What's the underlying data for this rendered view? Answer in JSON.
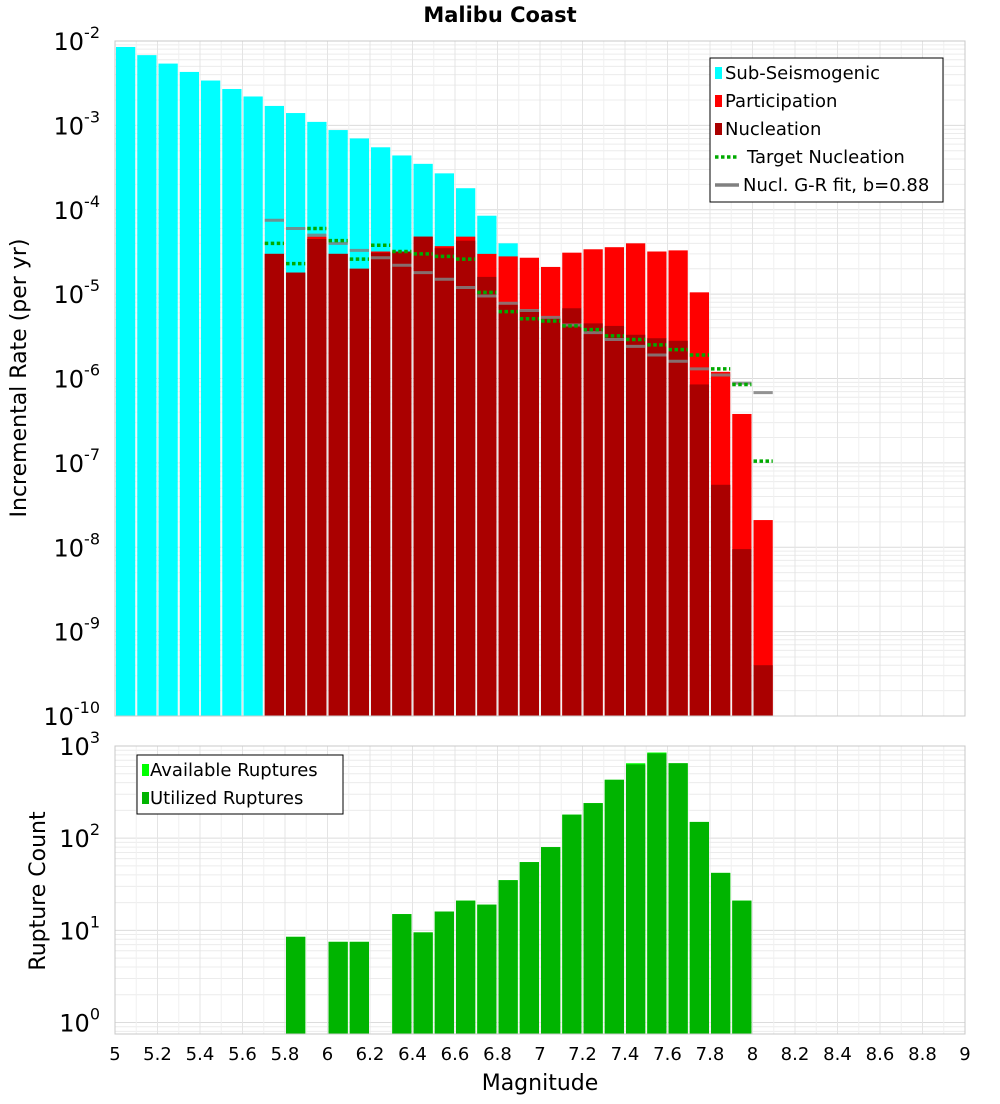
{
  "chart_data": [
    {
      "type": "bar",
      "title": "Malibu Coast",
      "ylabel": "Incremental Rate (per yr)",
      "xlabel": "",
      "yscale": "log",
      "ylim": [
        1e-10,
        0.01
      ],
      "xlim": [
        5,
        9
      ],
      "grid": true,
      "legend_placement": "top-right",
      "y_tick_labels": [
        {
          "base": "10",
          "exp": "-2"
        },
        {
          "base": "10",
          "exp": "-3"
        },
        {
          "base": "10",
          "exp": "-4"
        },
        {
          "base": "10",
          "exp": "-5"
        },
        {
          "base": "10",
          "exp": "-6"
        },
        {
          "base": "10",
          "exp": "-7"
        },
        {
          "base": "10",
          "exp": "-8"
        },
        {
          "base": "10",
          "exp": "-9"
        },
        {
          "base": "10",
          "exp": "-10"
        }
      ],
      "legend": [
        {
          "label": "Sub-Seismogenic",
          "color": "#00ffff",
          "kind": "box"
        },
        {
          "label": "Participation",
          "color": "#ff0000",
          "kind": "box"
        },
        {
          "label": "Nucleation",
          "color": "#aa0000",
          "kind": "box"
        },
        {
          "label": "Target Nucleation",
          "color": "#00aa00",
          "kind": "dotted"
        },
        {
          "label": "Nucl. G-R fit, b=0.88",
          "color": "#808080",
          "kind": "line"
        }
      ],
      "bar_width": 0.1,
      "series": [
        {
          "name": "Sub-Seismogenic",
          "color": "#00ffff",
          "x": [
            5.05,
            5.15,
            5.25,
            5.35,
            5.45,
            5.55,
            5.65,
            5.75,
            5.85,
            5.95,
            6.05,
            6.15,
            6.25,
            6.35,
            6.45,
            6.55,
            6.65,
            6.75,
            6.85
          ],
          "values": [
            0.0085,
            0.0068,
            0.0054,
            0.0043,
            0.0034,
            0.0027,
            0.0022,
            0.0017,
            0.0014,
            0.0011,
            0.00088,
            0.0007,
            0.00055,
            0.00044,
            0.00035,
            0.00027,
            0.00018,
            8.5e-05,
            4e-05
          ]
        },
        {
          "name": "Participation",
          "color": "#ff0000",
          "x": [
            5.75,
            5.85,
            5.95,
            6.05,
            6.15,
            6.25,
            6.35,
            6.45,
            6.55,
            6.65,
            6.75,
            6.85,
            6.95,
            7.05,
            7.15,
            7.25,
            7.35,
            7.45,
            7.55,
            7.65,
            7.75,
            7.85,
            7.95,
            8.05
          ],
          "values": [
            3e-05,
            1.8e-05,
            4.8e-05,
            3e-05,
            2e-05,
            3.2e-05,
            3.2e-05,
            4.8e-05,
            3.7e-05,
            4.8e-05,
            3e-05,
            2.8e-05,
            2.7e-05,
            2.1e-05,
            3.1e-05,
            3.4e-05,
            3.6e-05,
            4e-05,
            3.2e-05,
            3.3e-05,
            1.05e-05,
            1.2e-06,
            3.8e-07,
            2.1e-08
          ]
        },
        {
          "name": "Nucleation",
          "color": "#aa0000",
          "x": [
            5.75,
            5.85,
            5.95,
            6.05,
            6.15,
            6.25,
            6.35,
            6.45,
            6.55,
            6.65,
            6.75,
            6.85,
            6.95,
            7.05,
            7.15,
            7.25,
            7.35,
            7.45,
            7.55,
            7.65,
            7.75,
            7.85,
            7.95,
            8.05
          ],
          "values": [
            3e-05,
            1.8e-05,
            4.5e-05,
            3e-05,
            2e-05,
            3.1e-05,
            3.2e-05,
            4.8e-05,
            3.5e-05,
            4.3e-05,
            1.6e-05,
            7.5e-06,
            6.5e-06,
            5.2e-06,
            6.8e-06,
            4.5e-06,
            4.2e-06,
            3.3e-06,
            3e-06,
            2.8e-06,
            8.5e-07,
            5.5e-08,
            9.5e-09,
            4e-10
          ]
        },
        {
          "name": "Target Nucleation",
          "color": "#00aa00",
          "x": [
            5.75,
            5.85,
            5.95,
            6.05,
            6.15,
            6.25,
            6.35,
            6.45,
            6.55,
            6.65,
            6.75,
            6.85,
            6.95,
            7.05,
            7.15,
            7.25,
            7.35,
            7.45,
            7.55,
            7.65,
            7.75,
            7.85,
            7.95,
            8.05
          ],
          "values": [
            4e-05,
            2.3e-05,
            6e-05,
            4.3e-05,
            2.6e-05,
            3.8e-05,
            3.2e-05,
            3e-05,
            2.8e-05,
            2.6e-05,
            1.05e-05,
            6.2e-06,
            5.1e-06,
            4.8e-06,
            4.2e-06,
            3.8e-06,
            3.2e-06,
            2.9e-06,
            2.5e-06,
            2.2e-06,
            1.9e-06,
            1.3e-06,
            8.5e-07,
            1.05e-07
          ]
        },
        {
          "name": "Nucl. G-R fit, b=0.88",
          "color": "#808080",
          "x": [
            5.75,
            5.85,
            5.95,
            6.05,
            6.15,
            6.25,
            6.35,
            6.45,
            6.55,
            6.65,
            6.75,
            6.85,
            6.95,
            7.05,
            7.15,
            7.25,
            7.35,
            7.45,
            7.55,
            7.65,
            7.75,
            7.85,
            7.95,
            8.05
          ],
          "values": [
            7.5e-05,
            6e-05,
            5e-05,
            4e-05,
            3.3e-05,
            2.7e-05,
            2.2e-05,
            1.8e-05,
            1.5e-05,
            1.2e-05,
            9.5e-06,
            7.8e-06,
            6.4e-06,
            5.3e-06,
            4.3e-06,
            3.5e-06,
            2.9e-06,
            2.4e-06,
            1.9e-06,
            1.6e-06,
            1.3e-06,
            1.1e-06,
            8.8e-07,
            6.8e-07
          ]
        }
      ]
    },
    {
      "type": "bar",
      "title": "",
      "ylabel": "Rupture Count",
      "xlabel": "Magnitude",
      "yscale": "log",
      "ylim": [
        0.75,
        1000
      ],
      "xlim": [
        5,
        9
      ],
      "grid": true,
      "legend_placement": "top-left",
      "x_ticks": [
        "5",
        "5.2",
        "5.4",
        "5.6",
        "5.8",
        "6",
        "6.2",
        "6.4",
        "6.6",
        "6.8",
        "7",
        "7.2",
        "7.4",
        "7.6",
        "7.8",
        "8",
        "8.2",
        "8.4",
        "8.6",
        "8.8",
        "9"
      ],
      "y_tick_labels": [
        {
          "base": "10",
          "exp": "3",
          "value": 1000
        },
        {
          "base": "10",
          "exp": "2",
          "value": 100
        },
        {
          "base": "10",
          "exp": "1",
          "value": 10
        },
        {
          "base": "10",
          "exp": "0",
          "value": 1
        }
      ],
      "legend": [
        {
          "label": "Available Ruptures",
          "color": "#00ff00",
          "kind": "box"
        },
        {
          "label": "Utilized Ruptures",
          "color": "#00b400",
          "kind": "box"
        }
      ],
      "bar_width": 0.1,
      "series": [
        {
          "name": "Available Ruptures",
          "color": "#00ff00",
          "x": [
            5.85,
            6.05,
            6.15,
            6.35,
            6.45,
            6.55,
            6.65,
            6.75,
            6.85,
            6.95,
            7.05,
            7.15,
            7.25,
            7.35,
            7.45,
            7.55,
            7.65,
            7.75,
            7.85,
            7.95
          ],
          "values": [
            8.5,
            7.5,
            7.5,
            15,
            9.5,
            16,
            21,
            19,
            35,
            55,
            80,
            180,
            240,
            430,
            650,
            850,
            650,
            150,
            42,
            21
          ]
        },
        {
          "name": "Utilized Ruptures",
          "color": "#00b400",
          "x": [
            5.85,
            6.05,
            6.15,
            6.35,
            6.45,
            6.55,
            6.65,
            6.75,
            6.85,
            6.95,
            7.05,
            7.15,
            7.25,
            7.35,
            7.45,
            7.55,
            7.65,
            7.75,
            7.85,
            7.95
          ],
          "values": [
            8.5,
            7.5,
            7.5,
            15,
            9.5,
            16,
            21,
            19,
            35,
            55,
            80,
            180,
            240,
            430,
            630,
            830,
            650,
            150,
            42,
            21
          ]
        }
      ]
    }
  ]
}
